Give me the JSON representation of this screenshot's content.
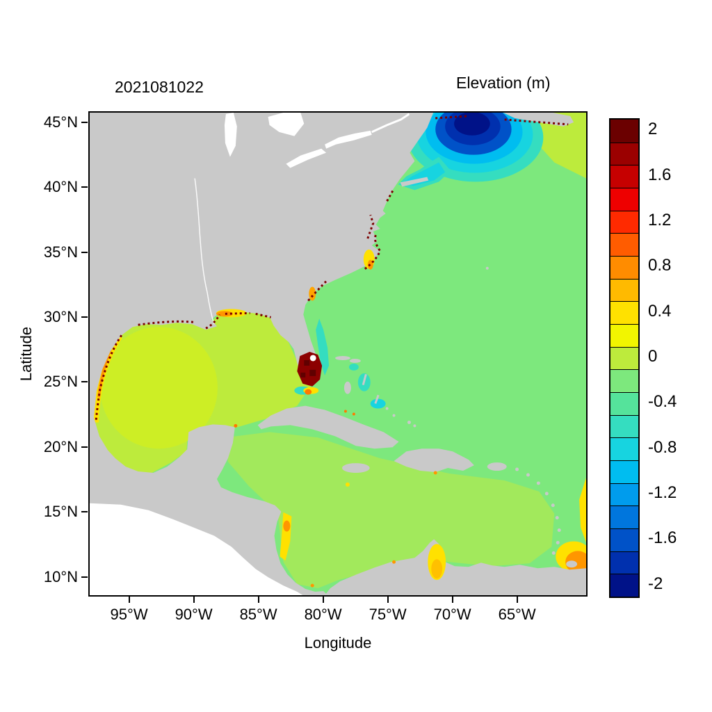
{
  "titles": {
    "timestamp": "2021081022",
    "colorbar": "Elevation (m)"
  },
  "axes": {
    "x_label": "Longitude",
    "y_label": "Latitude",
    "x_ticks": [
      {
        "label": "95°W",
        "lon": -95
      },
      {
        "label": "90°W",
        "lon": -90
      },
      {
        "label": "85°W",
        "lon": -85
      },
      {
        "label": "80°W",
        "lon": -80
      },
      {
        "label": "75°W",
        "lon": -75
      },
      {
        "label": "70°W",
        "lon": -70
      },
      {
        "label": "65°W",
        "lon": -65
      }
    ],
    "y_ticks": [
      {
        "label": "45°N",
        "lat": 45
      },
      {
        "label": "40°N",
        "lat": 40
      },
      {
        "label": "35°N",
        "lat": 35
      },
      {
        "label": "30°N",
        "lat": 30
      },
      {
        "label": "25°N",
        "lat": 25
      },
      {
        "label": "20°N",
        "lat": 20
      },
      {
        "label": "15°N",
        "lat": 15
      },
      {
        "label": "10°N",
        "lat": 10
      }
    ]
  },
  "colorbar": {
    "ticks": [
      {
        "label": "2",
        "value": 2
      },
      {
        "label": "1.6",
        "value": 1.6
      },
      {
        "label": "1.2",
        "value": 1.2
      },
      {
        "label": "0.8",
        "value": 0.8
      },
      {
        "label": "0.4",
        "value": 0.4
      },
      {
        "label": "0",
        "value": 0
      },
      {
        "label": "-0.4",
        "value": -0.4
      },
      {
        "label": "-0.8",
        "value": -0.8
      },
      {
        "label": "-1.2",
        "value": -1.2
      },
      {
        "label": "-1.6",
        "value": -1.6
      },
      {
        "label": "-2",
        "value": -2
      }
    ],
    "value_range": [
      -2.1,
      2.1
    ],
    "band_step": 0.2,
    "band_colors_top_to_bottom": [
      "#6b0000",
      "#9b0000",
      "#c60000",
      "#ee0000",
      "#ff2a00",
      "#ff5c00",
      "#ff8c00",
      "#ffba00",
      "#ffe100",
      "#f2f500",
      "#bdeb3c",
      "#7de87d",
      "#55e39b",
      "#35ddc0",
      "#17d4e0",
      "#00bdf0",
      "#009ced",
      "#0076dd",
      "#0052c8",
      "#0030ae",
      "#001288"
    ]
  },
  "map_colors": {
    "land": "#c9c9c9",
    "no_data": "#ffffff",
    "open_atlantic": "#7de87d",
    "gulf_caribbean": "#bdeb3c",
    "anomaly_core": "#001288",
    "extreme_high": "#6b0000"
  },
  "chart_data": {
    "type": "heatmap",
    "title": "2021081022",
    "value_label": "Elevation (m)",
    "xlabel": "Longitude",
    "ylabel": "Latitude",
    "x_range_deg_west": [
      98,
      60
    ],
    "y_range_deg_north": [
      8.5,
      46
    ],
    "colorbar_levels": [
      -2,
      -1.6,
      -1.2,
      -0.8,
      -0.4,
      0,
      0.4,
      0.8,
      1.2,
      1.6,
      2
    ],
    "legend_position": "right",
    "grid": false,
    "regions": [
      {
        "name": "open-western-atlantic",
        "approx_elevation_m": -0.1
      },
      {
        "name": "gulf-of-mexico",
        "approx_elevation_m": 0.0
      },
      {
        "name": "western-gulf-of-mexico-patch",
        "approx_elevation_m": 0.15
      },
      {
        "name": "caribbean-sea",
        "approx_elevation_m": 0.05
      },
      {
        "name": "gulf-of-maine-core",
        "approx_elevation_m": -2.0
      },
      {
        "name": "new-england-shelf-fringe",
        "approx_elevation_m": -0.8
      },
      {
        "name": "scotian-shelf-east",
        "approx_elevation_m": 0.2
      },
      {
        "name": "florida-east-coast-band",
        "approx_elevation_m": -0.5
      },
      {
        "name": "bahamas-channel-patches",
        "approx_elevation_m": -0.6
      },
      {
        "name": "south-florida-everglades-coast",
        "approx_elevation_m": 2.0
      },
      {
        "name": "texas-mexico-shoreline",
        "approx_elevation_m": 1.8
      },
      {
        "name": "louisiana-mississippi-shoreline",
        "approx_elevation_m": 2.0
      },
      {
        "name": "mississippi-alabama-nearshore",
        "approx_elevation_m": 0.8
      },
      {
        "name": "pamlico-sound",
        "approx_elevation_m": 0.5
      },
      {
        "name": "chesapeake-delaware-shoreline",
        "approx_elevation_m": 1.9
      },
      {
        "name": "nova-scotia-shoreline",
        "approx_elevation_m": 2.0
      },
      {
        "name": "georgia-coast",
        "approx_elevation_m": 0.7
      },
      {
        "name": "nicaragua-honduras-coast",
        "approx_elevation_m": 0.4
      },
      {
        "name": "lake-maracaibo-gulf-of-venezuela",
        "approx_elevation_m": 0.5
      },
      {
        "name": "trinidad-orinoco-delta",
        "approx_elevation_m": 0.9
      },
      {
        "name": "southeastern-boundary-strip",
        "approx_elevation_m": 0.4
      }
    ]
  }
}
